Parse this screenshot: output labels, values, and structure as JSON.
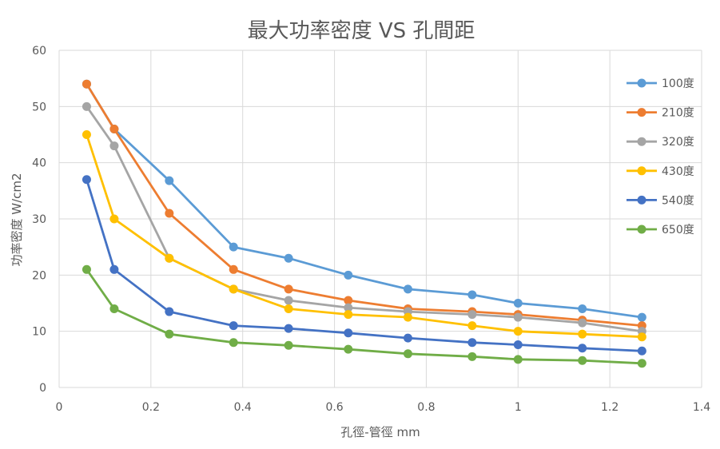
{
  "chart_data": {
    "type": "line",
    "title": "最大功率密度 VS 孔間距",
    "xlabel": "孔徑-管徑 mm",
    "ylabel": "功率密度 W/cm2",
    "xlim": [
      0,
      1.4
    ],
    "ylim": [
      0,
      60
    ],
    "xticks": [
      "0",
      "0.2",
      "0.4",
      "0.6",
      "0.8",
      "1",
      "1.2",
      "1.4"
    ],
    "yticks": [
      "0",
      "10",
      "20",
      "30",
      "40",
      "50",
      "60"
    ],
    "x": [
      0.06,
      0.12,
      0.24,
      0.38,
      0.5,
      0.63,
      0.76,
      0.9,
      1.0,
      1.14,
      1.27
    ],
    "grid": true,
    "legend_position": "right",
    "series": [
      {
        "name": "100度",
        "color": "#5b9bd5",
        "values": [
          54,
          46,
          36.8,
          25,
          23,
          20,
          17.5,
          16.5,
          15,
          14,
          12.5
        ]
      },
      {
        "name": "210度",
        "color": "#ed7d31",
        "values": [
          54,
          46,
          31,
          21,
          17.5,
          15.5,
          14,
          13.5,
          13,
          12,
          11
        ]
      },
      {
        "name": "320度",
        "color": "#a5a5a5",
        "values": [
          50,
          43,
          23,
          17.5,
          15.5,
          14.2,
          13.5,
          13,
          12.5,
          11.5,
          10
        ]
      },
      {
        "name": "430度",
        "color": "#ffc000",
        "values": [
          45,
          30,
          23,
          17.5,
          14,
          13,
          12.5,
          11,
          10,
          9.5,
          9
        ]
      },
      {
        "name": "540度",
        "color": "#4472c4",
        "values": [
          37,
          21,
          13.5,
          11,
          10.5,
          9.7,
          8.8,
          8,
          7.6,
          7,
          6.5
        ]
      },
      {
        "name": "650度",
        "color": "#70ad47",
        "values": [
          21,
          14,
          9.5,
          8,
          7.5,
          6.8,
          6,
          5.5,
          5,
          4.8,
          4.3
        ]
      }
    ]
  }
}
